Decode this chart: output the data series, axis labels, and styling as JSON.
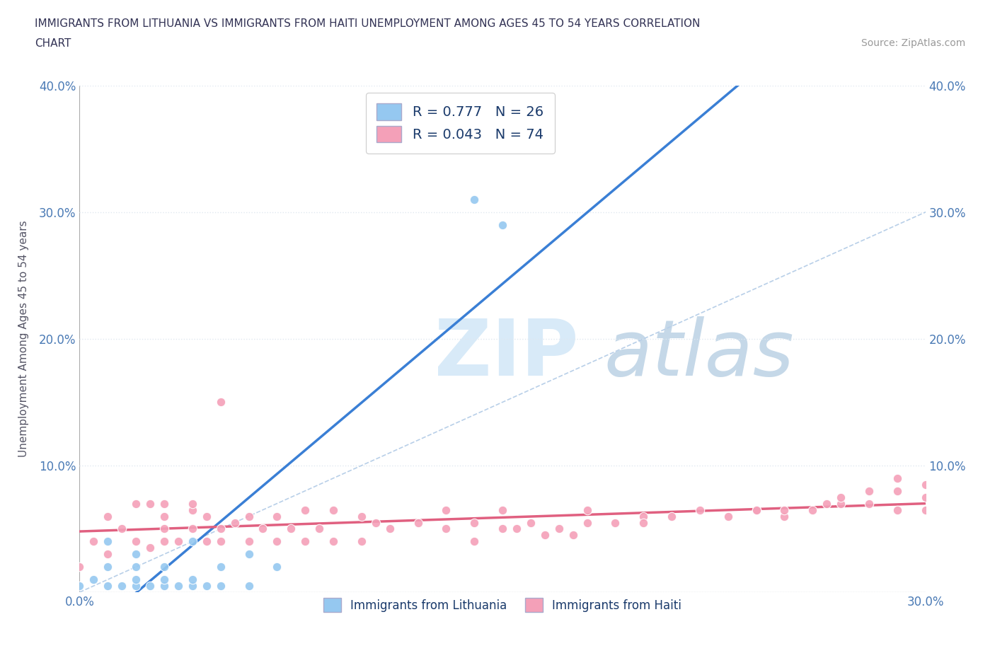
{
  "title_line1": "IMMIGRANTS FROM LITHUANIA VS IMMIGRANTS FROM HAITI UNEMPLOYMENT AMONG AGES 45 TO 54 YEARS CORRELATION",
  "title_line2": "CHART",
  "source_text": "Source: ZipAtlas.com",
  "ylabel": "Unemployment Among Ages 45 to 54 years",
  "xlim": [
    0.0,
    0.3
  ],
  "ylim": [
    0.0,
    0.4
  ],
  "xticks": [
    0.0,
    0.05,
    0.1,
    0.15,
    0.2,
    0.25,
    0.3
  ],
  "yticks": [
    0.0,
    0.1,
    0.2,
    0.3,
    0.4
  ],
  "xticklabels": [
    "0.0%",
    "",
    "",
    "",
    "",
    "",
    "30.0%"
  ],
  "yticklabels": [
    "",
    "10.0%",
    "20.0%",
    "30.0%",
    "40.0%"
  ],
  "right_yticklabels": [
    "",
    "10.0%",
    "20.0%",
    "30.0%",
    "40.0%"
  ],
  "R_lith": 0.777,
  "N_lith": 26,
  "R_haiti": 0.043,
  "N_haiti": 74,
  "color_lith": "#95c8f0",
  "color_haiti": "#f4a0b8",
  "line_color_lith": "#3a7fd5",
  "line_color_haiti": "#e06080",
  "diagonal_color": "#b8cfe8",
  "watermark_zip": "ZIP",
  "watermark_atlas": "atlas",
  "watermark_color_zip": "#d8eaf8",
  "watermark_color_atlas": "#c5d8e8",
  "legend_label_lith": "Immigrants from Lithuania",
  "legend_label_haiti": "Immigrants from Haiti",
  "title_color": "#333355",
  "axis_color": "#4a7ab5",
  "lith_x": [
    0.0,
    0.005,
    0.01,
    0.01,
    0.01,
    0.015,
    0.02,
    0.02,
    0.02,
    0.02,
    0.025,
    0.03,
    0.03,
    0.03,
    0.035,
    0.04,
    0.04,
    0.04,
    0.045,
    0.05,
    0.05,
    0.06,
    0.06,
    0.07,
    0.14,
    0.15
  ],
  "lith_y": [
    0.005,
    0.01,
    0.005,
    0.02,
    0.04,
    0.005,
    0.005,
    0.01,
    0.02,
    0.03,
    0.005,
    0.005,
    0.01,
    0.02,
    0.005,
    0.005,
    0.01,
    0.04,
    0.005,
    0.005,
    0.02,
    0.005,
    0.03,
    0.02,
    0.31,
    0.29
  ],
  "haiti_x": [
    0.0,
    0.005,
    0.01,
    0.01,
    0.015,
    0.02,
    0.02,
    0.025,
    0.025,
    0.03,
    0.03,
    0.03,
    0.03,
    0.035,
    0.04,
    0.04,
    0.04,
    0.045,
    0.045,
    0.05,
    0.05,
    0.05,
    0.055,
    0.06,
    0.06,
    0.065,
    0.07,
    0.07,
    0.075,
    0.08,
    0.08,
    0.085,
    0.09,
    0.09,
    0.1,
    0.1,
    0.105,
    0.11,
    0.12,
    0.13,
    0.13,
    0.14,
    0.15,
    0.15,
    0.16,
    0.17,
    0.18,
    0.18,
    0.19,
    0.2,
    0.2,
    0.21,
    0.22,
    0.23,
    0.24,
    0.25,
    0.25,
    0.26,
    0.27,
    0.27,
    0.28,
    0.28,
    0.29,
    0.29,
    0.29,
    0.3,
    0.3,
    0.3,
    0.14,
    0.155,
    0.165,
    0.175,
    0.24,
    0.265
  ],
  "haiti_y": [
    0.02,
    0.04,
    0.03,
    0.06,
    0.05,
    0.04,
    0.07,
    0.035,
    0.07,
    0.04,
    0.06,
    0.07,
    0.05,
    0.04,
    0.05,
    0.065,
    0.07,
    0.04,
    0.06,
    0.04,
    0.05,
    0.15,
    0.055,
    0.04,
    0.06,
    0.05,
    0.04,
    0.06,
    0.05,
    0.04,
    0.065,
    0.05,
    0.04,
    0.065,
    0.04,
    0.06,
    0.055,
    0.05,
    0.055,
    0.05,
    0.065,
    0.055,
    0.05,
    0.065,
    0.055,
    0.05,
    0.055,
    0.065,
    0.055,
    0.06,
    0.055,
    0.06,
    0.065,
    0.06,
    0.065,
    0.06,
    0.065,
    0.065,
    0.07,
    0.075,
    0.07,
    0.08,
    0.065,
    0.08,
    0.09,
    0.065,
    0.075,
    0.085,
    0.04,
    0.05,
    0.045,
    0.045,
    0.065,
    0.07
  ],
  "background_color": "#ffffff",
  "grid_color": "#e0e8f0"
}
